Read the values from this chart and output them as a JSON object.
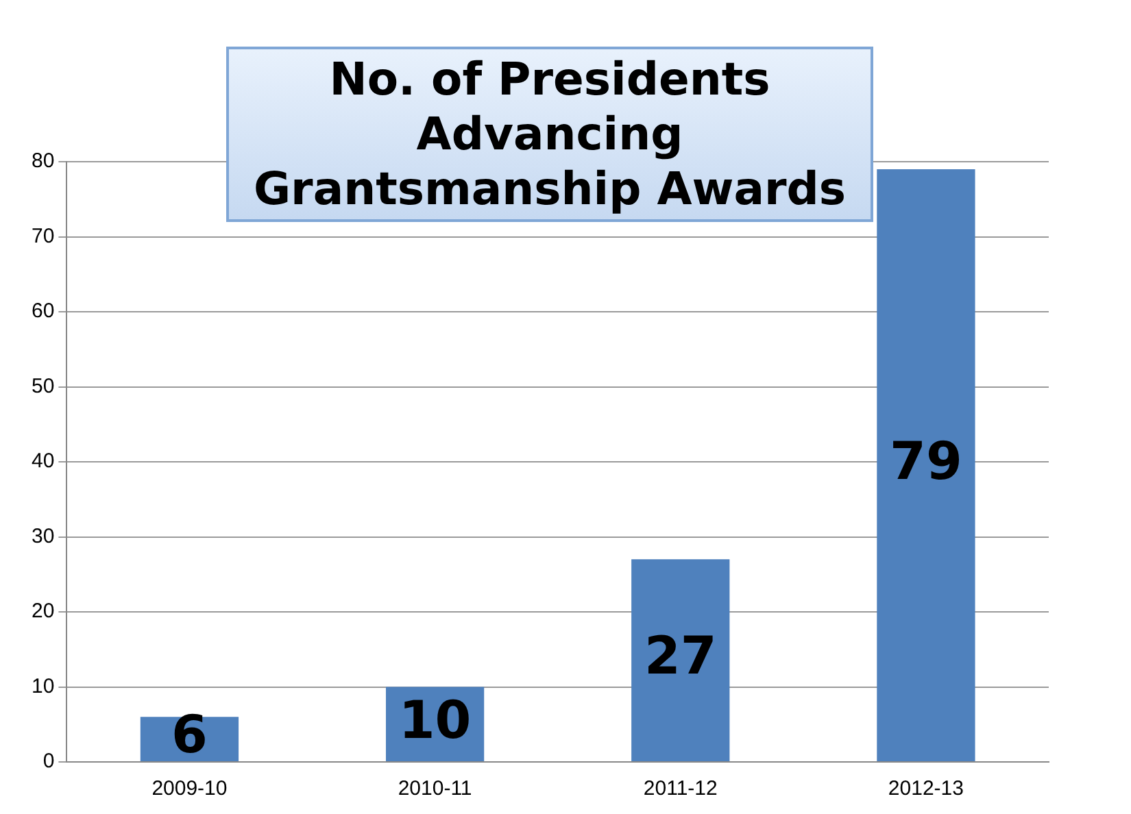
{
  "chart_data": {
    "type": "bar",
    "title": "No. of Presidents Advancing Grantsmanship Awards",
    "categories": [
      "2009-10",
      "2010-11",
      "2011-12",
      "2012-13"
    ],
    "values": [
      6,
      10,
      27,
      79
    ],
    "color": "#4f81bd",
    "ylim": [
      0,
      80
    ],
    "yticks": [
      0,
      10,
      20,
      30,
      40,
      50,
      60,
      70,
      80
    ],
    "grid": "y",
    "data_labels": true
  }
}
